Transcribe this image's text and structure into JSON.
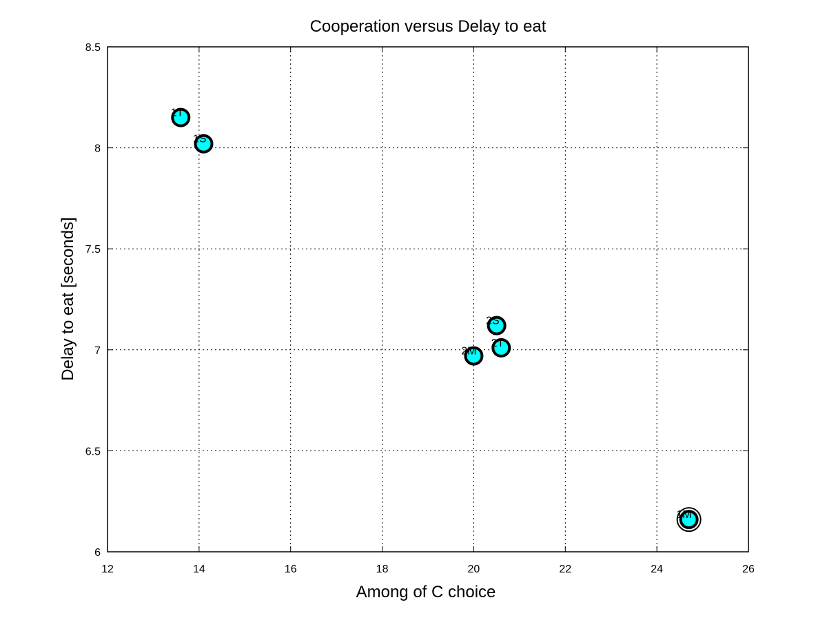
{
  "chart_data": {
    "type": "scatter",
    "title": "Cooperation versus Delay to eat",
    "xlabel": "Among of C choice",
    "ylabel": "Delay to eat [seconds]",
    "xlim": [
      12,
      26
    ],
    "ylim": [
      6,
      8.5
    ],
    "xticks": [
      12,
      14,
      16,
      18,
      20,
      22,
      24,
      26
    ],
    "yticks": [
      6,
      6.5,
      7,
      7.5,
      8,
      8.5
    ],
    "xtick_labels": [
      "12",
      "14",
      "16",
      "18",
      "20",
      "22",
      "24",
      "26"
    ],
    "ytick_labels": [
      "6",
      "6.5",
      "7",
      "7.5",
      "8",
      "8.5"
    ],
    "grid": true,
    "marker_color": "#00ffff",
    "marker_edge_color": "#000000",
    "points": [
      {
        "label": "1T",
        "x": 13.6,
        "y": 8.15
      },
      {
        "label": "1S",
        "x": 14.1,
        "y": 8.02
      },
      {
        "label": "2S",
        "x": 20.5,
        "y": 7.12
      },
      {
        "label": "2T",
        "x": 20.6,
        "y": 7.01
      },
      {
        "label": "2M",
        "x": 20.0,
        "y": 6.97
      },
      {
        "label": "1M",
        "x": 24.7,
        "y": 6.16,
        "emphasized": true
      }
    ]
  }
}
